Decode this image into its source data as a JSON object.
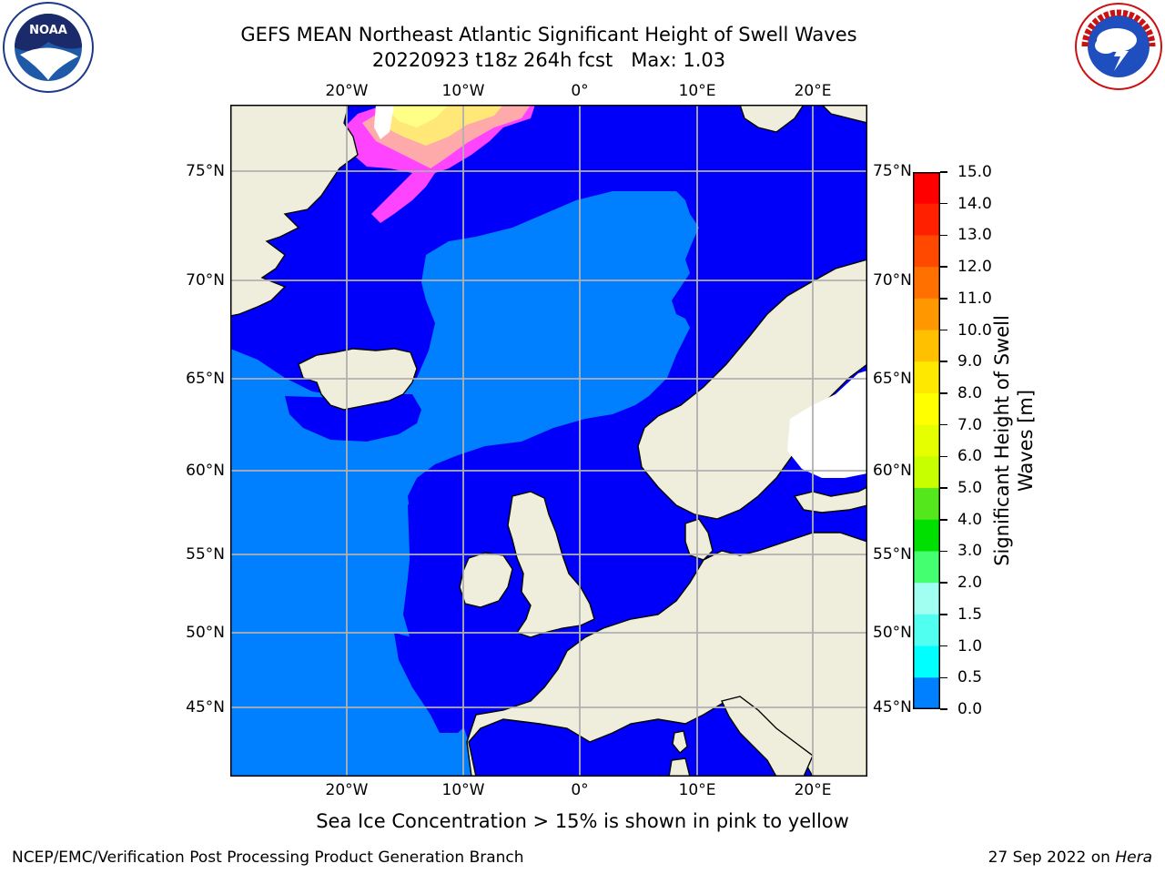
{
  "title": {
    "line1": "GEFS MEAN Northeast Atlantic Significant Height of Swell Waves",
    "line2": "20220923 t18z 264h fcst   Max: 1.03"
  },
  "logos": {
    "left": {
      "icon": "noaa-logo",
      "text": "NOAA",
      "ring_text": "NATIONAL OCEANIC AND ATMOSPHERIC ADMINISTRATION · U.S. DEPARTMENT OF COMMERCE"
    },
    "right": {
      "icon": "nws-logo",
      "ring_text": "NATIONAL WEATHER SERVICE"
    }
  },
  "map": {
    "lon_ticks": [
      "20°W",
      "10°W",
      "0°",
      "10°E",
      "20°E"
    ],
    "lat_ticks": [
      "75°N",
      "70°N",
      "65°N",
      "60°N",
      "55°N",
      "50°N",
      "45°N"
    ],
    "colors": {
      "land": "#efeedc",
      "ocean_low": "#0000fa",
      "ocean_mid": "#0080ff",
      "grid": "#b0b0b0",
      "ice": "#ff44ff"
    }
  },
  "colorbar": {
    "title_line1": "Significant Height of Swell",
    "title_line2": "Waves [m]",
    "ticks": [
      "15.0",
      "14.0",
      "13.0",
      "12.0",
      "11.0",
      "10.0",
      "9.0",
      "8.0",
      "7.0",
      "6.0",
      "5.0",
      "4.0",
      "3.0",
      "2.0",
      "1.5",
      "1.0",
      "0.5",
      "0.0"
    ],
    "colors": [
      "#ff0000",
      "#ff2000",
      "#ff4800",
      "#ff7000",
      "#ff9800",
      "#ffc000",
      "#ffe800",
      "#ffff00",
      "#e6ff00",
      "#c8ff00",
      "#54e81c",
      "#00e000",
      "#44ff70",
      "#a0fff0",
      "#50fff0",
      "#00ffff",
      "#0080ff",
      "#0000ff"
    ]
  },
  "note": "Sea Ice Concentration > 15% is shown in pink to yellow",
  "footer": {
    "left": "NCEP/EMC/Verification Post Processing Product Generation Branch",
    "right_date": "27 Sep 2022 on ",
    "right_machine": "Hera"
  }
}
